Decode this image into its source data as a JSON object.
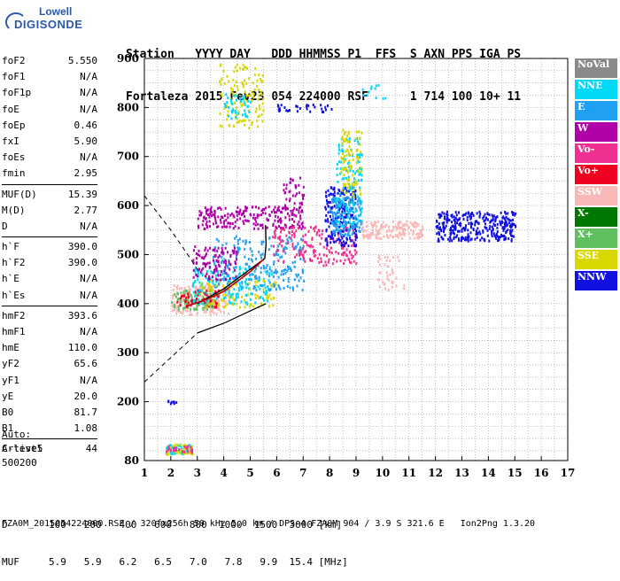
{
  "logo": {
    "line1": "Lowell",
    "line2": "DIGISONDE"
  },
  "header": {
    "row1": [
      "Station",
      "YYYY DAY",
      "DDD",
      "HHMMSS",
      "P1",
      "FFS",
      "S",
      "AXN",
      "PPS",
      "IGA",
      "PS"
    ],
    "row2": [
      "Fortaleza",
      "2015 Fev23",
      "054",
      "224000",
      "RSF",
      "",
      "1",
      "714",
      "100",
      "10+",
      "11"
    ]
  },
  "params": [
    {
      "label": "foF2",
      "value": "5.550"
    },
    {
      "label": "foF1",
      "value": "N/A"
    },
    {
      "label": "foF1p",
      "value": "N/A"
    },
    {
      "label": "foE",
      "value": "N/A"
    },
    {
      "label": "foEp",
      "value": "0.46"
    },
    {
      "label": "fxI",
      "value": "5.90"
    },
    {
      "label": "foEs",
      "value": "N/A"
    },
    {
      "label": "fmin",
      "value": "2.95"
    },
    {
      "sep": true
    },
    {
      "label": "MUF(D)",
      "value": "15.39"
    },
    {
      "label": "M(D)",
      "value": "2.77"
    },
    {
      "label": "D",
      "value": "N/A"
    },
    {
      "sep": true
    },
    {
      "label": "h`F",
      "value": "390.0"
    },
    {
      "label": "h`F2",
      "value": "390.0"
    },
    {
      "label": "h`E",
      "value": "N/A"
    },
    {
      "label": "h`Es",
      "value": "N/A"
    },
    {
      "sep": true
    },
    {
      "label": "hmF2",
      "value": "393.6"
    },
    {
      "label": "hmF1",
      "value": "N/A"
    },
    {
      "label": "hmE",
      "value": "110.0"
    },
    {
      "label": "yF2",
      "value": "65.6"
    },
    {
      "label": "yF1",
      "value": "N/A"
    },
    {
      "label": "yE",
      "value": "20.0"
    },
    {
      "label": "B0",
      "value": "81.7"
    },
    {
      "label": "B1",
      "value": "1.08"
    },
    {
      "sep": true
    },
    {
      "label": "C-level",
      "value": "44"
    }
  ],
  "auto": {
    "l1": "Auto:",
    "l2": "Artist5",
    "l3": "500200"
  },
  "legend": [
    {
      "label": "NoVal",
      "color": "#8a8a8a"
    },
    {
      "label": "NNE",
      "color": "#00d8f8"
    },
    {
      "label": "E",
      "color": "#20a0f0"
    },
    {
      "label": "W",
      "color": "#b000a8"
    },
    {
      "label": "Vo-",
      "color": "#f03090"
    },
    {
      "label": "Vo+",
      "color": "#f00020"
    },
    {
      "label": "SSW",
      "color": "#f8b8b8"
    },
    {
      "label": "X-",
      "color": "#007800"
    },
    {
      "label": "X+",
      "color": "#60c060"
    },
    {
      "label": "SSE",
      "color": "#d8d800"
    },
    {
      "label": "NNW",
      "color": "#1010e0"
    }
  ],
  "bottom": {
    "row1": {
      "label": "D",
      "values": [
        "100",
        "200",
        "400",
        "600",
        "800",
        "1000",
        "1500",
        "3000"
      ],
      "unit": "[km]"
    },
    "row2": {
      "label": "MUF",
      "values": [
        "5.9",
        "5.9",
        "6.2",
        "6.5",
        "7.0",
        "7.8",
        "9.9",
        "15.4"
      ],
      "unit": "[MHz]"
    }
  },
  "footer": "FZA0M_2015054224000.RSF / 320fx256h 50 kHz 5.0 km / DPS-4 FZA0M 904 / 3.9 S 321.6 E   Ion2Png 1.3.20",
  "chart_data": {
    "type": "scatter",
    "title": "",
    "xlabel": "",
    "ylabel": "",
    "xlim": [
      1,
      17
    ],
    "ylim": [
      80,
      900
    ],
    "xticks": [
      1,
      2,
      3,
      4,
      5,
      6,
      7,
      8,
      9,
      10,
      11,
      12,
      13,
      14,
      15,
      16,
      17
    ],
    "yticks": [
      80,
      200,
      300,
      400,
      500,
      600,
      700,
      800,
      900
    ],
    "grid": true,
    "legend_position": "right",
    "clusters": [
      {
        "name": "SSW",
        "x0": 2.0,
        "x1": 4.2,
        "y0": 380,
        "y1": 440,
        "n": 200
      },
      {
        "name": "X+",
        "x0": 2.0,
        "x1": 3.6,
        "y0": 390,
        "y1": 430,
        "n": 80
      },
      {
        "name": "Vo+",
        "x0": 2.2,
        "x1": 3.8,
        "y0": 395,
        "y1": 430,
        "n": 70
      },
      {
        "name": "NNE",
        "x0": 2.8,
        "x1": 5.8,
        "y0": 400,
        "y1": 480,
        "n": 180
      },
      {
        "name": "E",
        "x0": 3.5,
        "x1": 7.0,
        "y0": 430,
        "y1": 540,
        "n": 220
      },
      {
        "name": "SSE",
        "x0": 3.0,
        "x1": 6.0,
        "y0": 395,
        "y1": 450,
        "n": 90
      },
      {
        "name": "W",
        "x0": 2.8,
        "x1": 4.5,
        "y0": 450,
        "y1": 520,
        "n": 110
      },
      {
        "name": "W",
        "x0": 3.0,
        "x1": 7.0,
        "y0": 555,
        "y1": 600,
        "n": 220
      },
      {
        "name": "Vo-",
        "x0": 5.8,
        "x1": 9.0,
        "y0": 480,
        "y1": 560,
        "n": 180
      },
      {
        "name": "NNW",
        "x0": 7.8,
        "x1": 9.0,
        "y0": 520,
        "y1": 640,
        "n": 200
      },
      {
        "name": "E",
        "x0": 8.0,
        "x1": 9.2,
        "y0": 540,
        "y1": 620,
        "n": 160
      },
      {
        "name": "NNE",
        "x0": 8.2,
        "x1": 9.2,
        "y0": 560,
        "y1": 740,
        "n": 120
      },
      {
        "name": "SSE",
        "x0": 8.4,
        "x1": 9.2,
        "y0": 620,
        "y1": 760,
        "n": 90
      },
      {
        "name": "SSW",
        "x0": 9.2,
        "x1": 11.5,
        "y0": 535,
        "y1": 570,
        "n": 160
      },
      {
        "name": "NNW",
        "x0": 12.0,
        "x1": 15.0,
        "y0": 530,
        "y1": 590,
        "n": 320
      },
      {
        "name": "SSE",
        "x0": 3.8,
        "x1": 5.5,
        "y0": 760,
        "y1": 890,
        "n": 120
      },
      {
        "name": "NNE",
        "x0": 4.0,
        "x1": 5.0,
        "y0": 780,
        "y1": 830,
        "n": 40
      },
      {
        "name": "NNW",
        "x0": 6.0,
        "x1": 8.2,
        "y0": 793,
        "y1": 808,
        "n": 30
      },
      {
        "name": "NNE",
        "x0": 9.0,
        "x1": 10.2,
        "y0": 820,
        "y1": 850,
        "n": 12
      },
      {
        "name": "NNE",
        "x0": 1.8,
        "x1": 2.8,
        "y0": 95,
        "y1": 115,
        "n": 60
      },
      {
        "name": "SSE",
        "x0": 1.8,
        "x1": 2.8,
        "y0": 95,
        "y1": 115,
        "n": 40
      },
      {
        "name": "Vo-",
        "x0": 1.8,
        "x1": 2.8,
        "y0": 98,
        "y1": 112,
        "n": 25
      },
      {
        "name": "NNW",
        "x0": 1.8,
        "x1": 2.4,
        "y0": 198,
        "y1": 204,
        "n": 8
      },
      {
        "name": "SSW",
        "x0": 9.8,
        "x1": 10.8,
        "y0": 430,
        "y1": 500,
        "n": 40
      },
      {
        "name": "W",
        "x0": 6.2,
        "x1": 7.0,
        "y0": 590,
        "y1": 660,
        "n": 40
      }
    ],
    "profile_solid": [
      [
        3.0,
        400
      ],
      [
        4.0,
        430
      ],
      [
        5.0,
        470
      ],
      [
        5.55,
        492
      ],
      [
        5.6,
        520
      ],
      [
        5.58,
        560
      ]
    ],
    "profile_dashed": [
      [
        1.0,
        620
      ],
      [
        2.0,
        550
      ],
      [
        2.7,
        495
      ],
      [
        3.0,
        470
      ]
    ],
    "profile_dashed_lower": [
      [
        1.0,
        240
      ],
      [
        2.0,
        290
      ],
      [
        2.8,
        330
      ],
      [
        3.0,
        340
      ]
    ],
    "profile_lower": [
      [
        3.0,
        340
      ],
      [
        4.0,
        360
      ],
      [
        5.0,
        385
      ],
      [
        5.6,
        400
      ]
    ],
    "trace": [
      [
        2.6,
        395
      ],
      [
        3.0,
        402
      ],
      [
        3.5,
        412
      ],
      [
        4.0,
        425
      ],
      [
        4.5,
        445
      ],
      [
        5.0,
        465
      ],
      [
        5.5,
        490
      ]
    ]
  }
}
